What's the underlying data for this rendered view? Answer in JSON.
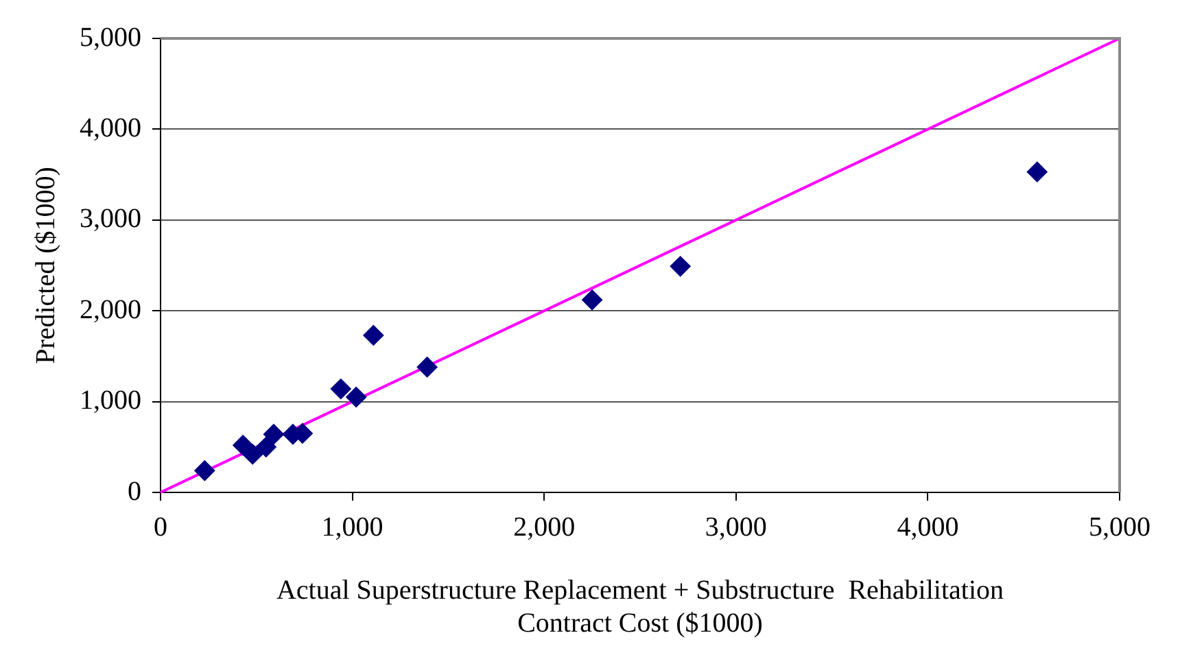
{
  "chart_data": {
    "type": "scatter",
    "xlabel": "Actual Superstructure Replacement + Substructure  Rehabilitation\nContract Cost ($1000)",
    "ylabel": "Predicted ($1000)",
    "xlim": [
      0,
      5000
    ],
    "ylim": [
      0,
      5000
    ],
    "xticks": [
      {
        "value": 0,
        "label": "0"
      },
      {
        "value": 1000,
        "label": "1,000"
      },
      {
        "value": 2000,
        "label": "2,000"
      },
      {
        "value": 3000,
        "label": "3,000"
      },
      {
        "value": 4000,
        "label": "4,000"
      },
      {
        "value": 5000,
        "label": "5,000"
      }
    ],
    "yticks": [
      {
        "value": 0,
        "label": "0"
      },
      {
        "value": 1000,
        "label": "1,000"
      },
      {
        "value": 2000,
        "label": "2,000"
      },
      {
        "value": 3000,
        "label": "3,000"
      },
      {
        "value": 4000,
        "label": "4,000"
      },
      {
        "value": 5000,
        "label": "5,000"
      }
    ],
    "grid": "y",
    "legend": false,
    "series": [
      {
        "color": "#000080",
        "marker": "diamond",
        "x": [
          230,
          430,
          480,
          550,
          590,
          690,
          740,
          940,
          1020,
          1110,
          1390,
          2250,
          2710,
          4570
        ],
        "values": [
          240,
          520,
          420,
          500,
          640,
          640,
          650,
          1140,
          1050,
          1730,
          1380,
          2120,
          2490,
          3530
        ]
      },
      {
        "type": "line",
        "color": "#ff00ff",
        "marker": "none",
        "line_style": "solid",
        "x": [
          0,
          5000
        ],
        "values": [
          0,
          5000
        ]
      }
    ]
  }
}
